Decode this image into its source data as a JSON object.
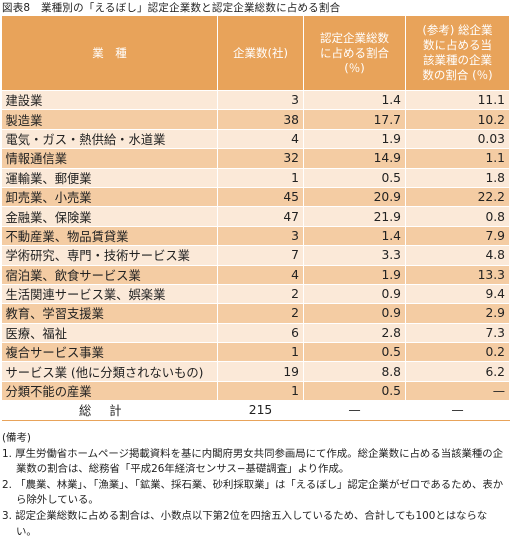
{
  "title": "図表8　業種別の「えるぼし」認定企業数と認定企業総数に占める割合",
  "table": {
    "headers": {
      "industry": "業　種",
      "companies": "企業数(社)",
      "share_of_certified": "認定企業総数\nに占める割合\n(％)",
      "share_of_industry": "(参考) 総企業\n数に占める当\n該業種の企業\n数の割合 (％)"
    },
    "rows": [
      {
        "industry": "建設業",
        "companies": "3",
        "share": "1.4",
        "ref": "11.1"
      },
      {
        "industry": "製造業",
        "companies": "38",
        "share": "17.7",
        "ref": "10.2"
      },
      {
        "industry": "電気・ガス・熱供給・水道業",
        "companies": "4",
        "share": "1.9",
        "ref": "0.03"
      },
      {
        "industry": "情報通信業",
        "companies": "32",
        "share": "14.9",
        "ref": "1.1"
      },
      {
        "industry": "運輸業、郵便業",
        "companies": "1",
        "share": "0.5",
        "ref": "1.8"
      },
      {
        "industry": "卸売業、小売業",
        "companies": "45",
        "share": "20.9",
        "ref": "22.2"
      },
      {
        "industry": "金融業、保険業",
        "companies": "47",
        "share": "21.9",
        "ref": "0.8"
      },
      {
        "industry": "不動産業、物品賃貸業",
        "companies": "3",
        "share": "1.4",
        "ref": "7.9"
      },
      {
        "industry": "学術研究、専門・技術サービス業",
        "companies": "7",
        "share": "3.3",
        "ref": "4.8"
      },
      {
        "industry": "宿泊業、飲食サービス業",
        "companies": "4",
        "share": "1.9",
        "ref": "13.3"
      },
      {
        "industry": "生活関連サービス業、娯楽業",
        "companies": "2",
        "share": "0.9",
        "ref": "9.4"
      },
      {
        "industry": "教育、学習支援業",
        "companies": "2",
        "share": "0.9",
        "ref": "2.9"
      },
      {
        "industry": "医療、福祉",
        "companies": "6",
        "share": "2.8",
        "ref": "7.3"
      },
      {
        "industry": "複合サービス事業",
        "companies": "1",
        "share": "0.5",
        "ref": "0.2"
      },
      {
        "industry": "サービス業 (他に分類されないもの)",
        "companies": "19",
        "share": "8.8",
        "ref": "6.2"
      },
      {
        "industry": "分類不能の産業",
        "companies": "1",
        "share": "0.5",
        "ref": "—"
      }
    ],
    "total": {
      "label": "総計",
      "companies": "215",
      "share": "—",
      "ref": "—"
    }
  },
  "notes": {
    "heading": "(備考)",
    "items": [
      "1. 厚生労働省ホームページ掲載資料を基に内閣府男女共同参画局にて作成。総企業数に占める当該業種の企業数の割合は、総務省「平成26年経済センサス−基礎調査」より作成。",
      "2. 「農業、林業」、「漁業」、「鉱業、採石業、砂利採取業」は「えるぼし」認定企業がゼロであるため、表から除外している。",
      "3. 認定企業総数に占める割合は、小数点以下第2位を四捨五入しているため、合計しても100とはならない。"
    ]
  },
  "colors": {
    "header_bg": "#e8a35a",
    "row_light": "#fbe9d8",
    "row_dark": "#f4cca3"
  }
}
